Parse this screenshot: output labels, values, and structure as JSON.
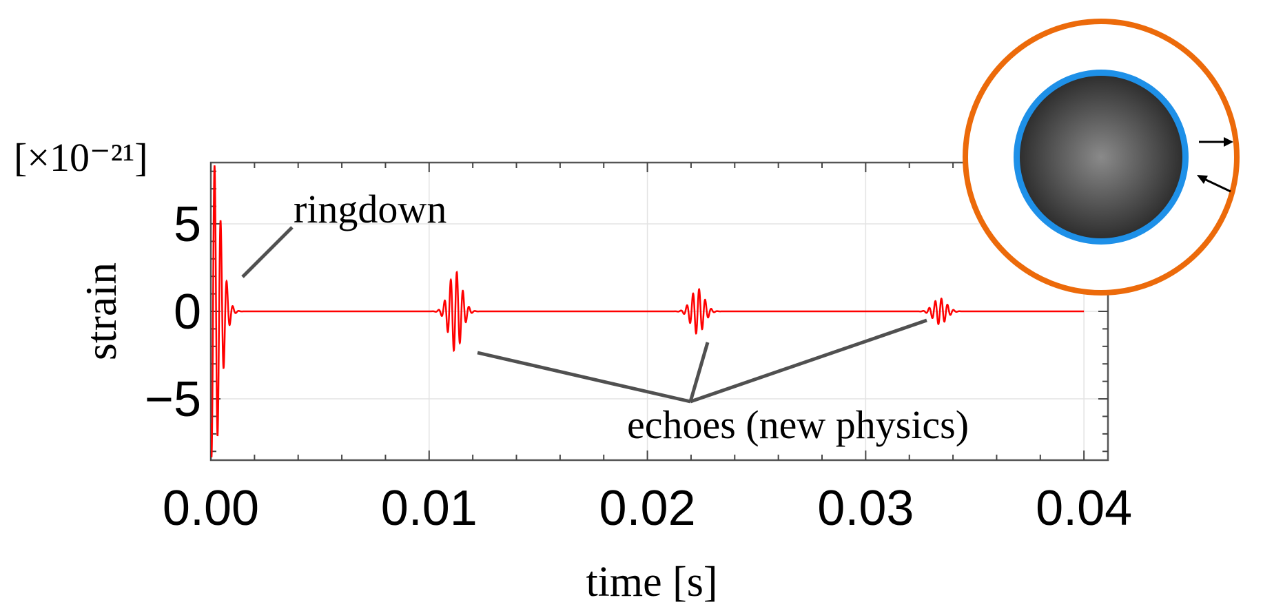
{
  "chart_data": {
    "type": "line",
    "xlabel": "time [s]",
    "ylabel": "strain",
    "y_multiplier": "[×10⁻²¹]",
    "xlim": [
      0.0,
      0.0411
    ],
    "ylim": [
      -8.5,
      8.5
    ],
    "x_ticks": [
      {
        "value": 0.0,
        "label": "0.00"
      },
      {
        "value": 0.01,
        "label": "0.01"
      },
      {
        "value": 0.02,
        "label": "0.02"
      },
      {
        "value": 0.03,
        "label": "0.03"
      },
      {
        "value": 0.04,
        "label": "0.04"
      }
    ],
    "y_ticks": [
      {
        "value": 5,
        "label": "5"
      },
      {
        "value": 0,
        "label": "0"
      },
      {
        "value": -5,
        "label": "−5"
      }
    ],
    "grid": true,
    "series": [
      {
        "color": "#ff0000",
        "x_range": [
          0.0,
          0.04
        ],
        "bursts": [
          {
            "t": 0.0001,
            "amplitude": 8.5,
            "decay": 0.00035,
            "period": 0.00028
          },
          {
            "t": 0.0112,
            "amplitude": 2.3,
            "decay": 0.0003,
            "period": 0.00028
          },
          {
            "t": 0.0223,
            "amplitude": 1.3,
            "decay": 0.0003,
            "period": 0.00028
          },
          {
            "t": 0.0334,
            "amplitude": 0.75,
            "decay": 0.0003,
            "period": 0.00028
          }
        ]
      }
    ],
    "annotations": {
      "ringdown": "ringdown",
      "echoes": "echoes (new physics)"
    }
  },
  "inset": {
    "ring_color": "#ec6a0a",
    "halo_color": "#1e90e8",
    "core_color": "#4a4a4a"
  }
}
